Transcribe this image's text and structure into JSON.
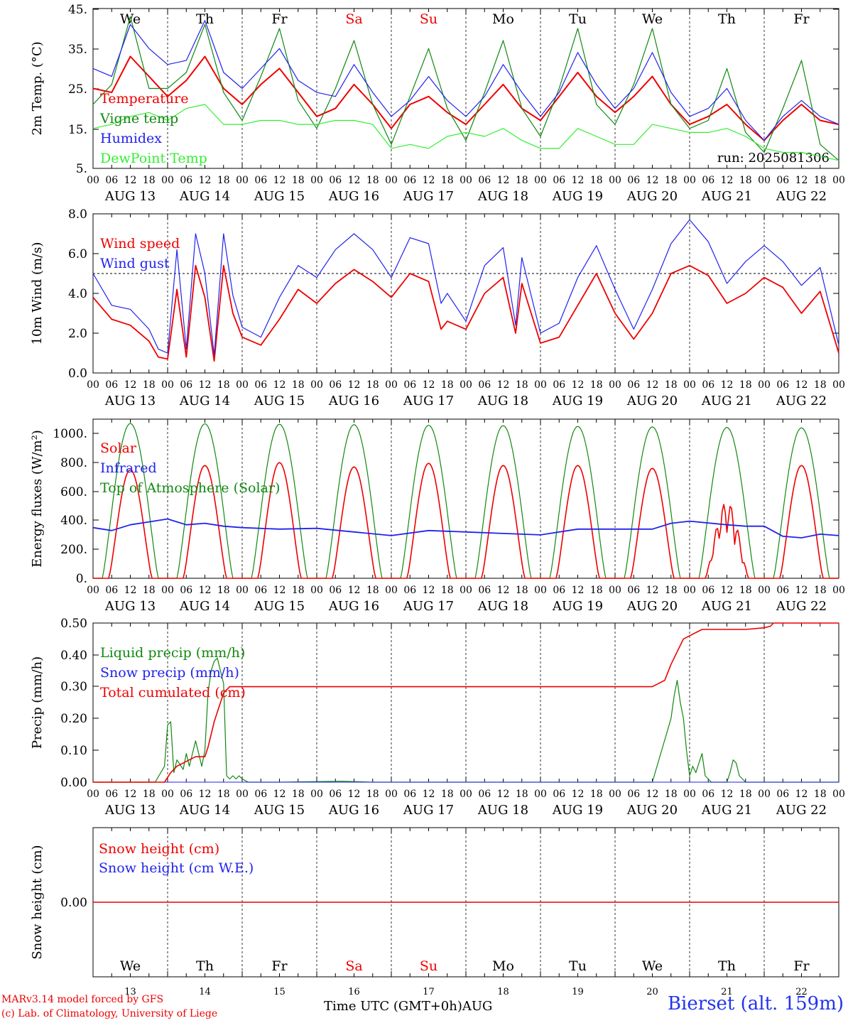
{
  "run_label": "run: 2025081306",
  "day_names": [
    "We",
    "Th",
    "Fr",
    "Sa",
    "Su",
    "Mo",
    "Tu",
    "We",
    "Th",
    "Fr"
  ],
  "weekend_indices": [
    3,
    4
  ],
  "day_dates": [
    "AUG 13",
    "AUG 14",
    "AUG 15",
    "AUG 16",
    "AUG 17",
    "AUG 18",
    "AUG 19",
    "AUG 20",
    "AUG 21",
    "AUG 22"
  ],
  "day_numbers": [
    "13",
    "14",
    "15",
    "16",
    "17",
    "18",
    "19",
    "20",
    "21",
    "22"
  ],
  "hour_ticks": [
    "00",
    "06",
    "12",
    "18"
  ],
  "final_hour_label": "00",
  "footer": {
    "credit_line1": "MARv3.14 model forced by GFS",
    "credit_line2": "(c) Lab. of Climatology, University of Liege",
    "time_axis_title": "Time UTC (GMT+0h)AUG",
    "station": "Bierset (alt. 159m)"
  },
  "colors": {
    "red": "#ee0000",
    "green": "#118811",
    "blue": "#2222ee",
    "lime": "#33ee33",
    "axis": "#000000"
  },
  "chart_data": [
    {
      "type": "line",
      "ylabel": "2m Temp. (°C)",
      "ylim": [
        5,
        45
      ],
      "yticks": [
        "5.",
        "15.",
        "25.",
        "35.",
        "45."
      ],
      "x_hours": [
        0,
        6,
        12,
        18,
        24,
        30,
        36,
        42,
        48,
        54,
        60,
        66,
        72,
        78,
        84,
        90,
        96,
        102,
        108,
        114,
        120,
        126,
        132,
        138,
        144,
        150,
        156,
        162,
        168,
        174,
        180,
        186,
        192,
        198,
        204,
        210,
        216,
        222,
        228,
        234,
        240
      ],
      "series": [
        {
          "name": "Temperature",
          "color": "red",
          "values": [
            25,
            24,
            33,
            28,
            23,
            27,
            33,
            25,
            21,
            26,
            30,
            24,
            18,
            20,
            26,
            21,
            15,
            21,
            23,
            19,
            16,
            21,
            26,
            20,
            17,
            23,
            29,
            23,
            19,
            23,
            28,
            21,
            16,
            18,
            21,
            16,
            12,
            17,
            21,
            17,
            16
          ]
        },
        {
          "name": "Vigne temp",
          "color": "green",
          "values": [
            21,
            26,
            43,
            25,
            25,
            29,
            41,
            24,
            17,
            28,
            40,
            22,
            15,
            25,
            37,
            21,
            11,
            23,
            35,
            20,
            12,
            24,
            37,
            20,
            13,
            25,
            40,
            21,
            16,
            26,
            40,
            21,
            15,
            17,
            30,
            14,
            9,
            20,
            32,
            11,
            7
          ]
        },
        {
          "name": "Humidex",
          "color": "blue",
          "values": [
            30,
            28,
            41,
            35,
            31,
            32,
            42,
            29,
            25,
            30,
            35,
            27,
            24,
            23,
            31,
            24,
            18,
            22,
            28,
            22,
            18,
            23,
            31,
            24,
            18,
            24,
            34,
            26,
            20,
            25,
            34,
            24,
            18,
            20,
            25,
            17,
            12,
            18,
            22,
            18,
            16
          ]
        },
        {
          "name": "DewPoint Temp",
          "color": "lime",
          "values": [
            15,
            16,
            18,
            19,
            17,
            20,
            21,
            16,
            16,
            17,
            17,
            16,
            16,
            17,
            17,
            16,
            10,
            11,
            10,
            13,
            14,
            13,
            15,
            12,
            10,
            10,
            15,
            13,
            11,
            11,
            16,
            15,
            14,
            14,
            15,
            13,
            10,
            9,
            9,
            8,
            7
          ]
        }
      ]
    },
    {
      "type": "line",
      "ylabel": "10m Wind (m/s)",
      "ylim": [
        0,
        8
      ],
      "yticks": [
        "0.0",
        "2.0",
        "4.0",
        "6.0",
        "8.0"
      ],
      "reference_line": 5,
      "x_hours": [
        0,
        6,
        12,
        18,
        21,
        24,
        27,
        30,
        33,
        36,
        39,
        42,
        45,
        48,
        54,
        60,
        66,
        72,
        78,
        84,
        90,
        96,
        102,
        108,
        112,
        114,
        120,
        126,
        132,
        136,
        138,
        144,
        150,
        156,
        162,
        168,
        174,
        180,
        186,
        192,
        198,
        204,
        210,
        216,
        222,
        228,
        234,
        240
      ],
      "series": [
        {
          "name": "Wind speed",
          "color": "red",
          "values": [
            3.8,
            2.7,
            2.4,
            1.6,
            0.8,
            0.7,
            4.2,
            0.8,
            5.4,
            3.8,
            0.6,
            5.4,
            3.0,
            1.8,
            1.4,
            2.7,
            4.2,
            3.5,
            4.5,
            5.2,
            4.6,
            3.8,
            5.0,
            4.6,
            2.2,
            2.6,
            2.2,
            4.0,
            4.8,
            2.0,
            4.5,
            1.5,
            1.8,
            3.4,
            5.0,
            3.0,
            1.7,
            3.0,
            5.0,
            5.4,
            4.9,
            3.5,
            4.0,
            4.8,
            4.3,
            3.0,
            4.1,
            1.0
          ]
        },
        {
          "name": "Wind gust",
          "color": "blue",
          "values": [
            5.0,
            3.4,
            3.2,
            2.2,
            1.2,
            1.0,
            6.2,
            1.2,
            7.0,
            5.0,
            0.9,
            7.0,
            3.9,
            2.3,
            1.8,
            3.8,
            5.4,
            4.8,
            6.2,
            7.0,
            6.2,
            4.8,
            6.8,
            6.5,
            3.5,
            4.0,
            2.6,
            5.4,
            6.3,
            2.4,
            5.8,
            2.0,
            2.5,
            4.8,
            6.4,
            4.2,
            2.2,
            4.2,
            6.5,
            7.7,
            6.6,
            4.5,
            5.6,
            6.4,
            5.6,
            4.4,
            5.3,
            1.4
          ]
        }
      ]
    },
    {
      "type": "line",
      "ylabel": "Energy fluxes (W/m²)",
      "ylim": [
        0,
        1100
      ],
      "yticks": [
        "0.",
        "200.",
        "400.",
        "600.",
        "800.",
        "1000."
      ],
      "series": [
        {
          "name": "Solar",
          "color": "red",
          "daily_peaks": [
            750,
            780,
            800,
            770,
            795,
            780,
            780,
            760,
            530,
            780
          ]
        },
        {
          "name": "Infrared",
          "color": "blue",
          "x_hours": [
            0,
            6,
            12,
            18,
            24,
            30,
            36,
            42,
            48,
            60,
            72,
            84,
            96,
            108,
            120,
            132,
            144,
            156,
            168,
            180,
            186,
            192,
            204,
            210,
            216,
            222,
            228,
            234,
            240
          ],
          "values": [
            350,
            330,
            370,
            390,
            410,
            370,
            380,
            360,
            350,
            340,
            345,
            320,
            295,
            330,
            320,
            310,
            300,
            340,
            340,
            340,
            380,
            395,
            370,
            360,
            360,
            290,
            280,
            305,
            295
          ]
        },
        {
          "name": "Top of Atmosphere (Solar)",
          "color": "green",
          "daily_peaks": [
            1070,
            1068,
            1065,
            1062,
            1058,
            1055,
            1050,
            1047,
            1043,
            1040
          ]
        }
      ]
    },
    {
      "type": "line",
      "ylabel": "Precip (mm/h)",
      "ylim": [
        0,
        0.5
      ],
      "yticks": [
        "0.00",
        "0.10",
        "0.20",
        "0.30",
        "0.40",
        "0.50"
      ],
      "series": [
        {
          "name": "Liquid precip (mm/h)",
          "color": "green",
          "x_hours": [
            0,
            20,
            23,
            24,
            25,
            26,
            27,
            29,
            30,
            31,
            33,
            35,
            36,
            37,
            38,
            39,
            40,
            42,
            43,
            44,
            45,
            46,
            47,
            48,
            49,
            50,
            60,
            80,
            90,
            100,
            180,
            186,
            187,
            188,
            189,
            190,
            191,
            192,
            193,
            194,
            195,
            196,
            197,
            198,
            199,
            200,
            204,
            205,
            206,
            207,
            208,
            209,
            210,
            240
          ],
          "values": [
            0,
            0,
            0.05,
            0.18,
            0.19,
            0.03,
            0.07,
            0.04,
            0.09,
            0.05,
            0.13,
            0.05,
            0.1,
            0.28,
            0.35,
            0.38,
            0.39,
            0.31,
            0.02,
            0.01,
            0.02,
            0.01,
            0.02,
            0.01,
            0.005,
            0,
            0,
            0.003,
            0,
            0,
            0,
            0.2,
            0.27,
            0.32,
            0.25,
            0.2,
            0.1,
            0.02,
            0.05,
            0.03,
            0.06,
            0.09,
            0.02,
            0.01,
            0,
            0,
            0,
            0.03,
            0.07,
            0.06,
            0.02,
            0.01,
            0,
            0
          ]
        },
        {
          "name": "Snow precip (mm/h)",
          "color": "blue",
          "values": [
            0
          ]
        },
        {
          "name": "Total cumulated (cm)",
          "color": "red",
          "x_hours": [
            0,
            23,
            25,
            27,
            29,
            31,
            33,
            36,
            37,
            38,
            39,
            40,
            41,
            42,
            43,
            44,
            45,
            48,
            60,
            72,
            84,
            96,
            120,
            144,
            168,
            180,
            184,
            186,
            188,
            190,
            192,
            196,
            200,
            210,
            216,
            218,
            219,
            222,
            240
          ],
          "values": [
            0,
            0,
            0.03,
            0.05,
            0.06,
            0.07,
            0.08,
            0.08,
            0.11,
            0.15,
            0.19,
            0.22,
            0.25,
            0.28,
            0.29,
            0.3,
            0.3,
            0.3,
            0.3,
            0.3,
            0.3,
            0.3,
            0.3,
            0.3,
            0.3,
            0.3,
            0.32,
            0.37,
            0.41,
            0.45,
            0.46,
            0.48,
            0.48,
            0.48,
            0.485,
            0.49,
            0.5,
            0.5,
            0.5
          ]
        }
      ]
    },
    {
      "type": "line",
      "ylabel": "Snow height (cm)",
      "ylim": [
        -1,
        1
      ],
      "yticks": [
        "0.00"
      ],
      "series": [
        {
          "name": "Snow height (cm)",
          "color": "red",
          "values": [
            0
          ]
        },
        {
          "name": "Snow height (cm W.E.)",
          "color": "blue",
          "values": [
            0
          ]
        }
      ]
    }
  ]
}
